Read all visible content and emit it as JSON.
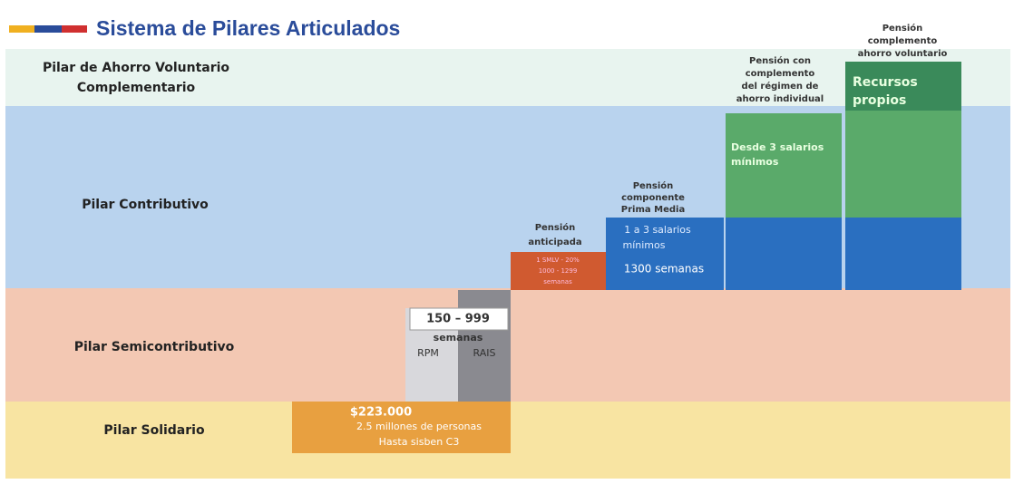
{
  "title": "Sistema de Pilares Articulados",
  "pillars": [
    {
      "label": [
        "Pilar de Ahorro Voluntario",
        "Complementario"
      ]
    },
    {
      "label": [
        "Pilar Contributivo"
      ]
    },
    {
      "label": [
        "Pilar Semicontributivo"
      ]
    },
    {
      "label": [
        "Pilar Solidario"
      ]
    }
  ],
  "solidario": {
    "amount": "$223.000",
    "lines": [
      "2.5 millones de personas",
      "Hasta sisben C3"
    ]
  },
  "semicontributivo": {
    "range": "150 – 999",
    "unit": "semanas",
    "rpm": "RPM",
    "rais": "RAIS"
  },
  "anticipada": {
    "heading": [
      "Pensión",
      "anticipada"
    ],
    "lines": [
      "1 SMLV - 20%",
      "1000 - 1299",
      "semanas"
    ]
  },
  "prima_media": {
    "heading": [
      "Pensión",
      "componente",
      "Prima Media"
    ],
    "lines": [
      "1 a 3 salarios",
      "mínimos",
      "1300 semanas"
    ]
  },
  "ahorro_individual": {
    "heading": [
      "Pensión con",
      "complemento",
      "del régimen de",
      "ahorro individual"
    ],
    "lines": [
      "Desde 3 salarios",
      "mínimos"
    ]
  },
  "ahorro_voluntario": {
    "heading": [
      "Pensión",
      "complemento",
      "ahorro voluntario"
    ],
    "lines": [
      "Recursos",
      "propios"
    ]
  }
}
